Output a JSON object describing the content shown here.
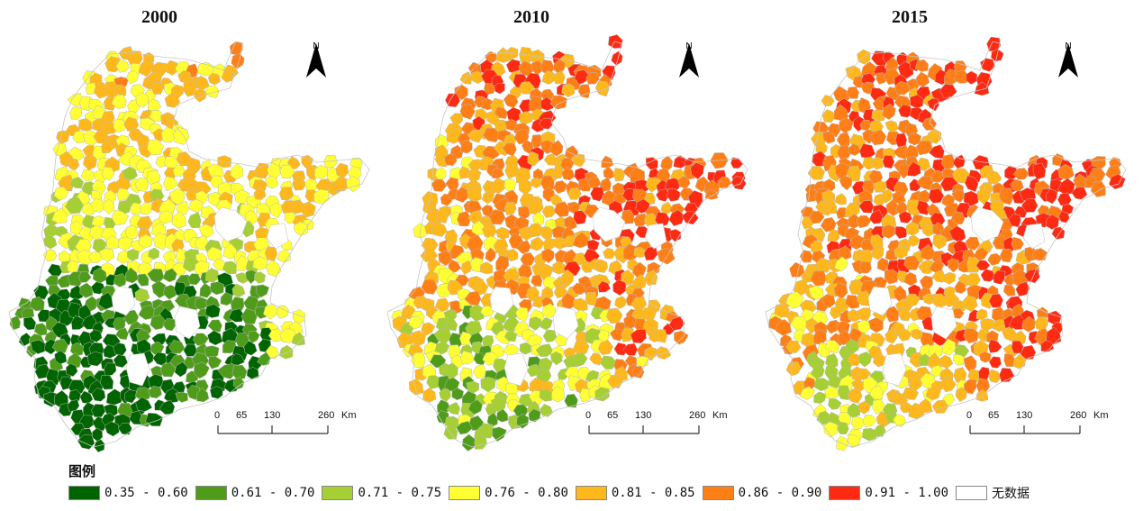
{
  "maps": [
    {
      "year": "2000",
      "north": "N",
      "scale": {
        "ticks": [
          "0",
          "65",
          "130",
          "260"
        ],
        "unit": "Km"
      }
    },
    {
      "year": "2010",
      "north": "N",
      "scale": {
        "ticks": [
          "0",
          "65",
          "130",
          "260"
        ],
        "unit": "Km"
      }
    },
    {
      "year": "2015",
      "north": "N",
      "scale": {
        "ticks": [
          "0",
          "65",
          "130",
          "260"
        ],
        "unit": "Km"
      }
    }
  ],
  "legend": {
    "title": "图例",
    "classes": [
      {
        "label": "0.35 - 0.60",
        "color": "#006400"
      },
      {
        "label": "0.61 - 0.70",
        "color": "#4f9c1a"
      },
      {
        "label": "0.71 - 0.75",
        "color": "#a6cf33"
      },
      {
        "label": "0.76 - 0.80",
        "color": "#ffff33"
      },
      {
        "label": "0.81 - 0.85",
        "color": "#ffb81c"
      },
      {
        "label": "0.86 - 0.90",
        "color": "#ff7f16"
      },
      {
        "label": "0.91 - 1.00",
        "color": "#ff2a12"
      },
      {
        "label": "无数据",
        "color": "#ffffff"
      }
    ]
  }
}
